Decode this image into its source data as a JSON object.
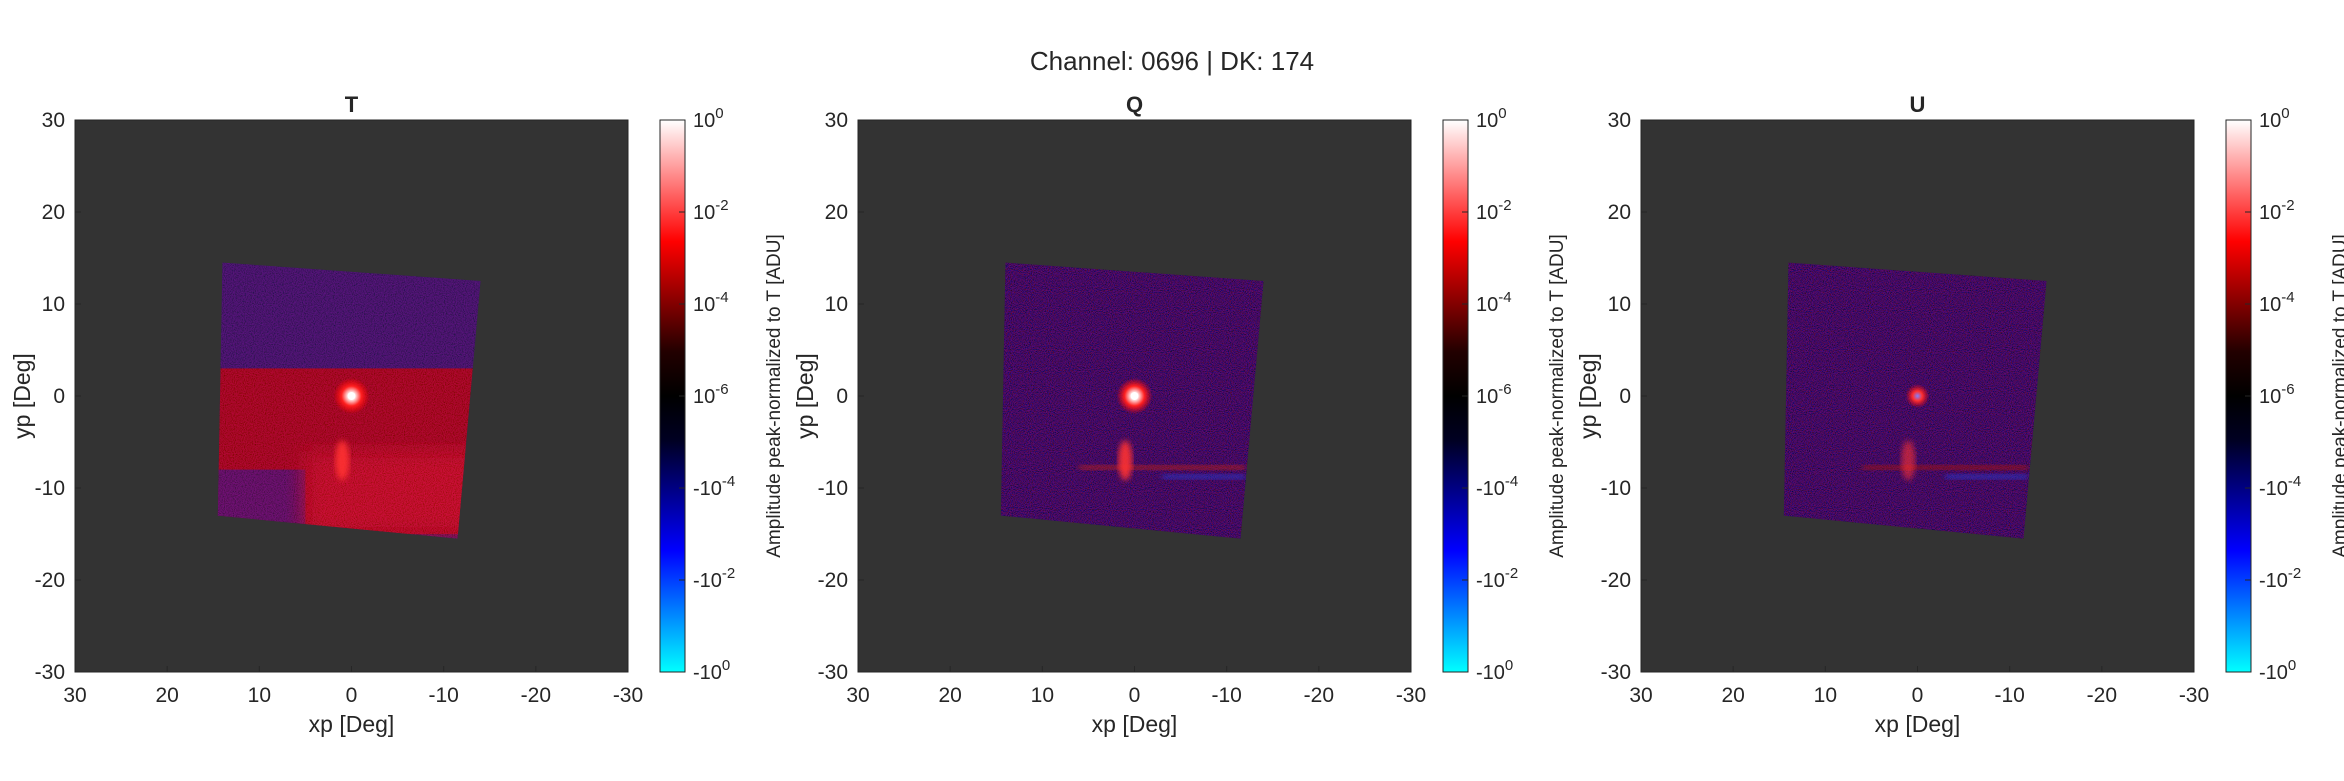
{
  "figure": {
    "title": "Channel: 0696 | DK: 174"
  },
  "chart_data": [
    {
      "type": "heatmap",
      "title": "T",
      "xlabel": "xp [Deg]",
      "ylabel": "yp [Deg]",
      "xlim": [
        30,
        -30
      ],
      "ylim": [
        -30,
        30
      ],
      "x_reversed": true,
      "xticks": [
        30,
        20,
        10,
        0,
        -10,
        -20,
        -30
      ],
      "yticks": [
        30,
        20,
        10,
        0,
        -10,
        -20,
        -30
      ],
      "background_color": "#333333",
      "footprint_corners": [
        [
          14,
          14.5
        ],
        [
          -14,
          12.5
        ],
        [
          -11.5,
          -15.5
        ],
        [
          14.5,
          -13
        ]
      ],
      "peak": {
        "x": 0,
        "y": 0
      },
      "colorbar": {
        "label": "Amplitude peak-normalized to T [ADU]",
        "ticks": [
          "10^0",
          "10^-2",
          "10^-4",
          "10^-6",
          "-10^-4",
          "-10^-2",
          "-10^0"
        ],
        "colors": [
          "#ffffff",
          "#ff0000",
          "#000000",
          "#0000ff",
          "#00ffff"
        ]
      }
    },
    {
      "type": "heatmap",
      "title": "Q",
      "xlabel": "xp [Deg]",
      "ylabel": "yp [Deg]",
      "xlim": [
        30,
        -30
      ],
      "ylim": [
        -30,
        30
      ],
      "x_reversed": true,
      "xticks": [
        30,
        20,
        10,
        0,
        -10,
        -20,
        -30
      ],
      "yticks": [
        30,
        20,
        10,
        0,
        -10,
        -20,
        -30
      ],
      "background_color": "#333333",
      "footprint_corners": [
        [
          14,
          14.5
        ],
        [
          -14,
          12.5
        ],
        [
          -11.5,
          -15.5
        ],
        [
          14.5,
          -13
        ]
      ],
      "peak": {
        "x": 0,
        "y": 0
      },
      "colorbar": {
        "label": "Amplitude peak-normalized to T [ADU]",
        "ticks": [
          "10^0",
          "10^-2",
          "10^-4",
          "10^-6",
          "-10^-4",
          "-10^-2",
          "-10^0"
        ],
        "colors": [
          "#ffffff",
          "#ff0000",
          "#000000",
          "#0000ff",
          "#00ffff"
        ]
      }
    },
    {
      "type": "heatmap",
      "title": "U",
      "xlabel": "xp [Deg]",
      "ylabel": "yp [Deg]",
      "xlim": [
        30,
        -30
      ],
      "ylim": [
        -30,
        30
      ],
      "x_reversed": true,
      "xticks": [
        30,
        20,
        10,
        0,
        -10,
        -20,
        -30
      ],
      "yticks": [
        30,
        20,
        10,
        0,
        -10,
        -20,
        -30
      ],
      "background_color": "#333333",
      "footprint_corners": [
        [
          14,
          14.5
        ],
        [
          -14,
          12.5
        ],
        [
          -11.5,
          -15.5
        ],
        [
          14.5,
          -13
        ]
      ],
      "peak": {
        "x": 0,
        "y": 0
      },
      "colorbar": {
        "label": "Amplitude peak-normalized to T [ADU]",
        "ticks": [
          "10^0",
          "10^-2",
          "10^-4",
          "10^-6",
          "-10^-4",
          "-10^-2",
          "-10^0"
        ],
        "colors": [
          "#ffffff",
          "#ff0000",
          "#000000",
          "#0000ff",
          "#00ffff"
        ]
      }
    }
  ]
}
